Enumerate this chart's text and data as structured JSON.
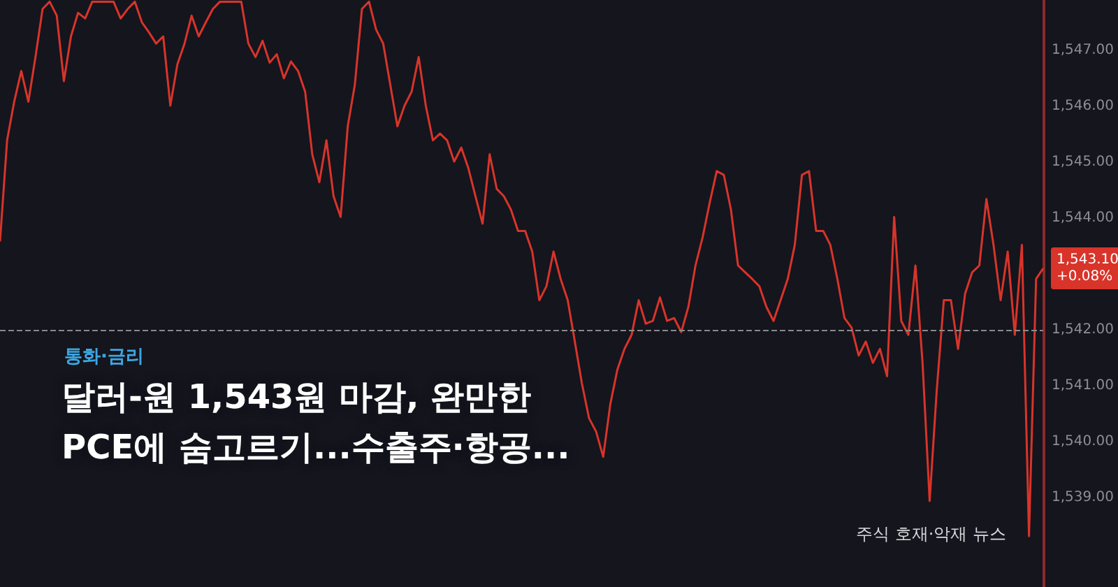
{
  "chart_data": {
    "type": "line",
    "title": "달러-원 1,543원 마감, 완만한 PCE에 숨고르기...수출주·항공...",
    "subtitle": "통화·금리",
    "annotations": [
      "1,543.10\n+0.08%",
      "주식 호재·악재 뉴스"
    ],
    "categories": [
      null,
      null,
      null,
      null,
      null,
      null,
      null,
      null,
      null,
      null,
      null,
      null,
      null,
      null,
      null,
      null,
      null,
      null,
      null,
      null,
      null,
      null,
      null,
      null,
      null,
      null,
      null,
      null,
      null,
      null,
      null,
      null,
      null,
      null,
      null,
      null,
      null,
      null,
      null,
      null,
      null,
      null,
      null,
      null,
      null,
      null,
      null,
      null,
      null,
      null,
      null,
      null,
      null,
      null,
      null,
      null,
      null,
      null,
      null,
      null,
      null,
      null,
      null,
      null,
      null,
      null,
      null,
      null,
      null,
      null,
      null,
      null,
      null,
      null,
      null,
      null,
      null,
      null,
      null,
      null,
      null,
      null,
      null,
      null,
      null,
      null,
      null,
      null,
      null,
      null,
      null,
      null,
      null,
      null,
      null,
      null,
      null,
      null,
      null,
      null,
      null,
      null,
      null,
      null,
      null,
      null,
      null,
      null,
      null,
      null,
      null,
      null,
      null,
      null,
      null,
      null,
      null,
      null,
      null,
      null,
      null,
      null,
      null,
      null,
      null,
      null,
      null,
      null,
      null,
      null,
      null,
      null,
      null,
      null,
      null,
      null,
      null,
      null,
      null,
      null,
      null,
      null,
      null,
      null,
      null,
      null,
      null,
      null
    ],
    "series": [
      {
        "color": "#d8342a",
        "values": [
          1543.58,
          1545.39,
          1546.08,
          1546.63,
          1546.08,
          1546.88,
          1547.74,
          1547.87,
          1547.62,
          1546.45,
          1547.25,
          1547.67,
          1547.57,
          1547.87,
          1547.87,
          1547.87,
          1547.87,
          1547.57,
          1547.74,
          1547.87,
          1547.5,
          1547.32,
          1547.12,
          1547.25,
          1546.01,
          1546.75,
          1547.12,
          1547.62,
          1547.25,
          1547.5,
          1547.74,
          1547.87,
          1547.87,
          1547.87,
          1547.87,
          1547.12,
          1546.88,
          1547.17,
          1546.78,
          1546.93,
          1546.5,
          1546.8,
          1546.63,
          1546.26,
          1545.14,
          1544.64,
          1545.39,
          1544.39,
          1544.02,
          1545.64,
          1546.38,
          1547.74,
          1547.87,
          1547.37,
          1547.12,
          1546.38,
          1545.64,
          1546.01,
          1546.26,
          1546.88,
          1546.01,
          1545.39,
          1545.51,
          1545.39,
          1545.01,
          1545.26,
          1544.89,
          1544.39,
          1543.9,
          1545.14,
          1544.52,
          1544.39,
          1544.15,
          1543.77,
          1543.77,
          1543.4,
          1542.53,
          1542.78,
          1543.4,
          1542.91,
          1542.53,
          1541.79,
          1541.04,
          1540.42,
          1540.18,
          1539.73,
          1540.67,
          1541.29,
          1541.66,
          1541.91,
          1542.53,
          1542.11,
          1542.16,
          1542.58,
          1542.16,
          1542.21,
          1541.96,
          1542.41,
          1543.15,
          1543.65,
          1544.27,
          1544.84,
          1544.77,
          1544.15,
          1543.15,
          1543.03,
          1542.91,
          1542.78,
          1542.41,
          1542.16,
          1542.53,
          1542.91,
          1543.52,
          1544.77,
          1544.84,
          1543.77,
          1543.77,
          1543.52,
          1542.91,
          1542.21,
          1542.04,
          1541.54,
          1541.79,
          1541.41,
          1541.66,
          1541.17,
          1544.02,
          1542.16,
          1541.91,
          1543.15,
          1541.41,
          1538.94,
          1540.92,
          1542.53,
          1542.53,
          1541.66,
          1542.65,
          1543.03,
          1543.15,
          1544.34,
          1543.52,
          1542.53,
          1543.4,
          1541.91,
          1543.52,
          1538.31,
          1542.91,
          1543.1
        ]
      }
    ],
    "ylim": [
      1537.4,
      1547.9
    ],
    "yticks": [
      {
        "value": 1539,
        "label": "1,539.00"
      },
      {
        "value": 1540,
        "label": "1,540.00"
      },
      {
        "value": 1541,
        "label": "1,541.00"
      },
      {
        "value": 1542,
        "label": "1,542.00"
      },
      {
        "value": 1544,
        "label": "1,544.00"
      },
      {
        "value": 1545,
        "label": "1,545.00"
      },
      {
        "value": 1546,
        "label": "1,546.00"
      },
      {
        "value": 1547,
        "label": "1,547.00"
      }
    ],
    "ref_lines": [
      {
        "axis": "y",
        "value": 1542,
        "color": "#8a8a8a",
        "line_style": "dashed"
      }
    ],
    "grid": false,
    "line_style": "solid"
  }
}
